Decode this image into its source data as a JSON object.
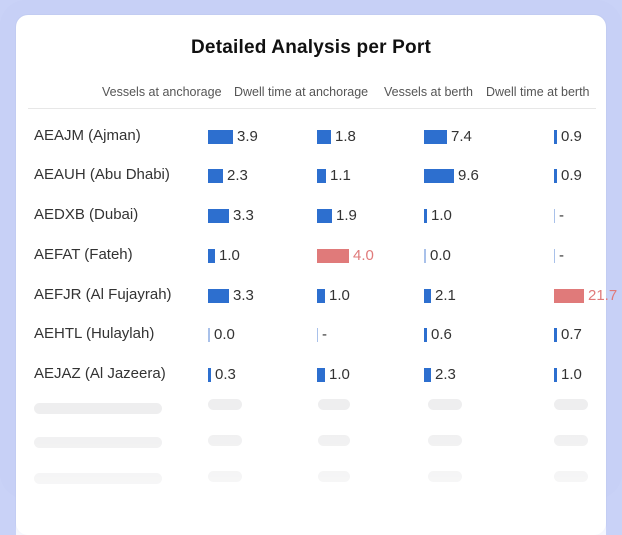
{
  "title": "Detailed Analysis per Port",
  "columns": [
    "Vessels at anchorage",
    "Dwell time at anchorage",
    "Vessels at berth",
    "Dwell time at berth"
  ],
  "colors": {
    "bar": "#2d6fcf",
    "highlight": "#e07a7a",
    "frame": "#c7d0f6"
  },
  "rows": [
    {
      "port": "AEAJM (Ajman)",
      "cells": [
        {
          "text": "3.9",
          "value": 3.9,
          "highlight": false
        },
        {
          "text": "1.8",
          "value": 1.8,
          "highlight": false
        },
        {
          "text": "7.4",
          "value": 7.4,
          "highlight": false
        },
        {
          "text": "0.9",
          "value": 0.9,
          "highlight": false
        }
      ]
    },
    {
      "port": "AEAUH (Abu Dhabi)",
      "cells": [
        {
          "text": "2.3",
          "value": 2.3,
          "highlight": false
        },
        {
          "text": "1.1",
          "value": 1.1,
          "highlight": false
        },
        {
          "text": "9.6",
          "value": 9.6,
          "highlight": false
        },
        {
          "text": "0.9",
          "value": 0.9,
          "highlight": false
        }
      ]
    },
    {
      "port": "AEDXB (Dubai)",
      "cells": [
        {
          "text": "3.3",
          "value": 3.3,
          "highlight": false
        },
        {
          "text": "1.9",
          "value": 1.9,
          "highlight": false
        },
        {
          "text": "1.0",
          "value": 1.0,
          "highlight": false
        },
        {
          "text": "-",
          "value": null,
          "highlight": false
        }
      ]
    },
    {
      "port": "AEFAT (Fateh)",
      "cells": [
        {
          "text": "1.0",
          "value": 1.0,
          "highlight": false
        },
        {
          "text": "4.0",
          "value": 4.0,
          "highlight": true
        },
        {
          "text": "0.0",
          "value": 0.0,
          "highlight": false
        },
        {
          "text": "-",
          "value": null,
          "highlight": false
        }
      ]
    },
    {
      "port": "AEFJR (Al Fujayrah)",
      "cells": [
        {
          "text": "3.3",
          "value": 3.3,
          "highlight": false
        },
        {
          "text": "1.0",
          "value": 1.0,
          "highlight": false
        },
        {
          "text": "2.1",
          "value": 2.1,
          "highlight": false
        },
        {
          "text": "21.7",
          "value": 21.7,
          "highlight": true
        }
      ]
    },
    {
      "port": "AEHTL (Hulaylah)",
      "cells": [
        {
          "text": "0.0",
          "value": 0.0,
          "highlight": false
        },
        {
          "text": "-",
          "value": null,
          "highlight": false
        },
        {
          "text": "0.6",
          "value": 0.6,
          "highlight": false
        },
        {
          "text": "0.7",
          "value": 0.7,
          "highlight": false
        }
      ]
    },
    {
      "port": "AEJAZ (Al Jazeera)",
      "cells": [
        {
          "text": "0.3",
          "value": 0.3,
          "highlight": false
        },
        {
          "text": "1.0",
          "value": 1.0,
          "highlight": false
        },
        {
          "text": "2.3",
          "value": 2.3,
          "highlight": false
        },
        {
          "text": "1.0",
          "value": 1.0,
          "highlight": false
        }
      ]
    }
  ]
}
